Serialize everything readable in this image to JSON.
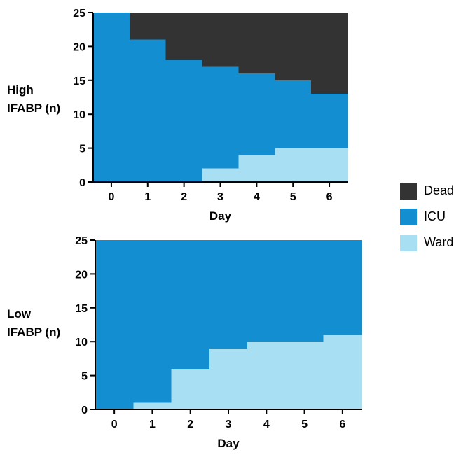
{
  "colors": {
    "Dead": "#333333",
    "ICU": "#138ed1",
    "Ward": "#a8dff3"
  },
  "legend": {
    "items": [
      {
        "label": "Dead",
        "color": "#333333"
      },
      {
        "label": "ICU",
        "color": "#138ed1"
      },
      {
        "label": "Ward",
        "color": "#a8dff3"
      }
    ]
  },
  "chart_data": [
    {
      "type": "area",
      "ylabel": "High\nIFABP (n)",
      "xlabel": "Day",
      "x": [
        0,
        1,
        2,
        3,
        4,
        5,
        6
      ],
      "ylim": [
        0,
        25
      ],
      "yticks": [
        0,
        5,
        10,
        15,
        20,
        25
      ],
      "total": 25,
      "series": [
        {
          "name": "Ward",
          "values": [
            0,
            0,
            0,
            2,
            4,
            5,
            5
          ]
        },
        {
          "name": "ICU",
          "values": [
            25,
            21,
            18,
            15,
            12,
            10,
            8
          ]
        },
        {
          "name": "Dead",
          "values": [
            0,
            4,
            7,
            8,
            9,
            10,
            12
          ]
        }
      ]
    },
    {
      "type": "area",
      "ylabel": "Low\nIFABP (n)",
      "xlabel": "Day",
      "x": [
        0,
        1,
        2,
        3,
        4,
        5,
        6
      ],
      "ylim": [
        0,
        25
      ],
      "yticks": [
        0,
        5,
        10,
        15,
        20,
        25
      ],
      "total": 25,
      "series": [
        {
          "name": "Ward",
          "values": [
            0,
            1,
            6,
            9,
            10,
            10,
            11
          ]
        },
        {
          "name": "ICU",
          "values": [
            25,
            24,
            19,
            16,
            15,
            15,
            14
          ]
        },
        {
          "name": "Dead",
          "values": [
            0,
            0,
            0,
            0,
            0,
            0,
            0
          ]
        }
      ]
    }
  ]
}
